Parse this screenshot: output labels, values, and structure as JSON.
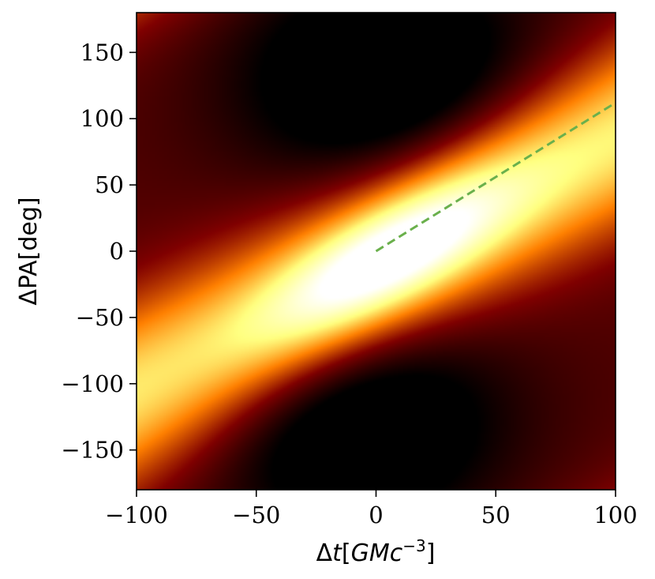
{
  "chart_data": {
    "type": "heatmap",
    "colormap": "afmhot",
    "xlabel": {
      "prefix": "Δ",
      "var": "t",
      "open": "[",
      "unit": "GMc",
      "exp": "−3",
      "close": "]"
    },
    "ylabel": "ΔPA[deg]",
    "xlim": [
      -100,
      100
    ],
    "ylim": [
      -180,
      180
    ],
    "x_ticks": [
      -100,
      -50,
      0,
      50,
      100
    ],
    "x_tick_labels": [
      "−100",
      "−50",
      "0",
      "50",
      "100"
    ],
    "y_ticks": [
      -150,
      -100,
      -50,
      0,
      50,
      100,
      150
    ],
    "y_tick_labels": [
      "−150",
      "−100",
      "−50",
      "0",
      "50",
      "100",
      "150"
    ],
    "heatmap_features": {
      "peak": {
        "x": 5,
        "y": -5
      },
      "ridge_slope_deg_per_unit": 0.95,
      "dark_lobes": [
        {
          "x": 5,
          "y": 130
        },
        {
          "x": -10,
          "y": -125
        }
      ]
    },
    "overlay_line": {
      "style": "dashed",
      "color": "#6ab04c",
      "x": [
        0,
        100
      ],
      "y": [
        0,
        112
      ]
    },
    "grid": false,
    "legend": "none"
  }
}
